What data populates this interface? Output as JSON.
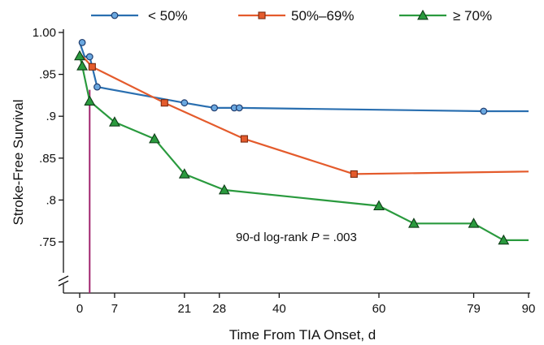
{
  "chart_data": {
    "type": "line",
    "xlabel": "Time From TIA Onset, d",
    "ylabel": "Stroke-Free Survival",
    "xlim": [
      0,
      90
    ],
    "ylim": [
      0.74,
      1.0
    ],
    "y_axis_break": true,
    "x_ticks": [
      0,
      7,
      21,
      28,
      40,
      60,
      79,
      90
    ],
    "x_tick_labels": [
      "0",
      "7",
      "21",
      "28",
      "40",
      "60",
      "79",
      "90"
    ],
    "y_ticks": [
      0.75,
      0.8,
      0.85,
      0.9,
      0.95,
      1.0
    ],
    "y_tick_labels": [
      ".75",
      ".8",
      ".85",
      ".9",
      ".95",
      "1.00"
    ],
    "annotation": {
      "prefix": "90-d log-rank ",
      "italic": "P",
      "suffix": " = .003"
    },
    "reference_line": {
      "x": 2,
      "color": "#a0246e"
    },
    "legend_position": "top",
    "grid": false,
    "series": [
      {
        "name": "< 50%",
        "color": "#2a6fb0",
        "marker": "circle",
        "line": [
          [
            0,
            0.988
          ],
          [
            1,
            0.971
          ],
          [
            2,
            0.971
          ],
          [
            3.5,
            0.935
          ],
          [
            21,
            0.916
          ],
          [
            27,
            0.91
          ],
          [
            31,
            0.91
          ],
          [
            32,
            0.91
          ],
          [
            81,
            0.906
          ],
          [
            90,
            0.906
          ]
        ],
        "points": [
          [
            0.5,
            0.988
          ],
          [
            2,
            0.971
          ],
          [
            3.5,
            0.935
          ],
          [
            21,
            0.916
          ],
          [
            27,
            0.91
          ],
          [
            31,
            0.91
          ],
          [
            32,
            0.91
          ],
          [
            81,
            0.906
          ]
        ]
      },
      {
        "name": "50%–69%",
        "color": "#e45b2c",
        "marker": "square",
        "line": [
          [
            0,
            0.975
          ],
          [
            2.5,
            0.959
          ],
          [
            17,
            0.916
          ],
          [
            33,
            0.873
          ],
          [
            55,
            0.831
          ],
          [
            90,
            0.834
          ]
        ],
        "points": [
          [
            2.5,
            0.959
          ],
          [
            17,
            0.916
          ],
          [
            33,
            0.873
          ],
          [
            55,
            0.831
          ]
        ]
      },
      {
        "name": "≥ 70%",
        "color": "#2a9a3e",
        "marker": "triangle",
        "line": [
          [
            0,
            0.972
          ],
          [
            0.5,
            0.96
          ],
          [
            2,
            0.918
          ],
          [
            7,
            0.893
          ],
          [
            15,
            0.873
          ],
          [
            21,
            0.831
          ],
          [
            29,
            0.812
          ],
          [
            60,
            0.793
          ],
          [
            67,
            0.772
          ],
          [
            79,
            0.772
          ],
          [
            85,
            0.752
          ],
          [
            90,
            0.752
          ]
        ],
        "points": [
          [
            0,
            0.972
          ],
          [
            0.5,
            0.96
          ],
          [
            2,
            0.918
          ],
          [
            7,
            0.893
          ],
          [
            15,
            0.873
          ],
          [
            21,
            0.831
          ],
          [
            29,
            0.812
          ],
          [
            60,
            0.793
          ],
          [
            67,
            0.772
          ],
          [
            79,
            0.772
          ],
          [
            85,
            0.752
          ]
        ]
      }
    ]
  }
}
